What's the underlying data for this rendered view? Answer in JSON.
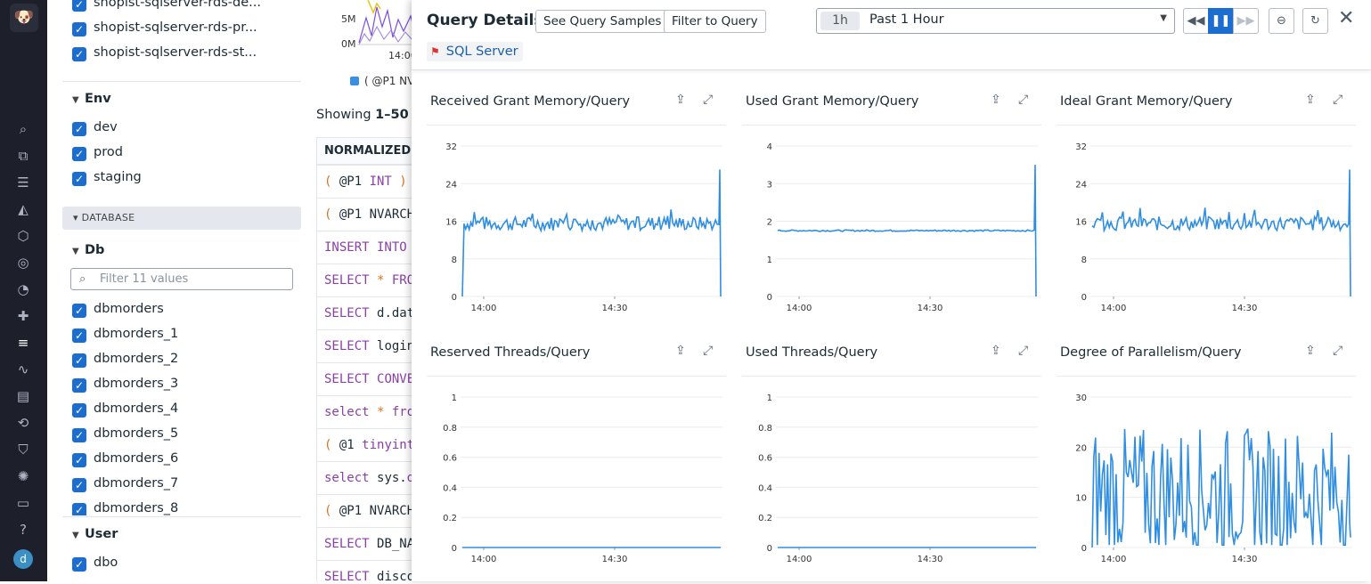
{
  "nav": {
    "logo": "🐶",
    "icons": [
      "search-icon",
      "binoculars-icon",
      "list-icon",
      "chart-icon",
      "infra-icon",
      "target-icon",
      "gauge-icon",
      "puzzle-icon",
      "logs-icon",
      "apm-icon",
      "notebook-icon",
      "rum-icon",
      "security-icon",
      "settings-icon",
      "chat-icon",
      "help-icon"
    ],
    "avatar": "d"
  },
  "facets": {
    "hosts": [
      "shopist-sqlserver-rds-de...",
      "shopist-sqlserver-rds-pr...",
      "shopist-sqlserver-rds-st..."
    ],
    "env": {
      "title": "Env",
      "items": [
        "dev",
        "prod",
        "staging"
      ]
    },
    "database_section": "DATABASE",
    "db": {
      "title": "Db",
      "filter_placeholder": "Filter 11 values",
      "items": [
        "dbmorders",
        "dbmorders_1",
        "dbmorders_2",
        "dbmorders_3",
        "dbmorders_4",
        "dbmorders_5",
        "dbmorders_6",
        "dbmorders_7",
        "dbmorders_8"
      ]
    },
    "user": {
      "title": "User",
      "items": [
        "dbo"
      ]
    }
  },
  "middle": {
    "tick_5m": "5M",
    "tick_0m": "0M",
    "tick_time": "14:00",
    "legend": "( @P1 NV",
    "showing_prefix": "Showing ",
    "showing_range": "1–50",
    "showing_suffix": " of",
    "column_header": "NORMALIZED Q",
    "queries": [
      [
        [
          "op",
          "( "
        ],
        [
          "pl",
          "@P1 "
        ],
        [
          "kw",
          "INT"
        ],
        [
          "op",
          " )"
        ]
      ],
      [
        [
          "op",
          "( "
        ],
        [
          "pl",
          "@P1 NVARCH"
        ]
      ],
      [
        [
          "kw",
          "INSERT INTO"
        ]
      ],
      [
        [
          "kw",
          "SELECT "
        ],
        [
          "op",
          "* "
        ],
        [
          "kw",
          "FRO"
        ]
      ],
      [
        [
          "kw",
          "SELECT "
        ],
        [
          "pl",
          "d.dat"
        ]
      ],
      [
        [
          "kw",
          "SELECT "
        ],
        [
          "pl",
          "login"
        ]
      ],
      [
        [
          "kw",
          "SELECT "
        ],
        [
          "kw",
          "CONVE"
        ]
      ],
      [
        [
          "kw",
          "select "
        ],
        [
          "op",
          "* "
        ],
        [
          "kw",
          "fro"
        ]
      ],
      [
        [
          "op",
          "( "
        ],
        [
          "pl",
          "@1 "
        ],
        [
          "kw",
          "tinyint"
        ]
      ],
      [
        [
          "kw",
          "select "
        ],
        [
          "pl",
          "sys."
        ],
        [
          "kw",
          "d"
        ]
      ],
      [
        [
          "op",
          "( "
        ],
        [
          "pl",
          "@P1 NVARCH"
        ]
      ],
      [
        [
          "kw",
          "SELECT "
        ],
        [
          "pl",
          "DB_NA"
        ]
      ],
      [
        [
          "kw",
          "SELECT "
        ],
        [
          "pl",
          "disco"
        ]
      ]
    ]
  },
  "panel": {
    "title": "Query Details",
    "see_samples": "See Query Samples",
    "filter_to_query": "Filter to Query",
    "tag": "SQL Server",
    "time_pill": "1h",
    "time_label": "Past 1 Hour",
    "controls": [
      "rewind-icon",
      "pause-icon",
      "fast-forward-icon",
      "zoom-out-icon",
      "refresh-icon"
    ],
    "close": "✕",
    "colors": {
      "accent": "#1c6dd0",
      "series": "#2f8ee0"
    }
  },
  "widgets": [
    {
      "title": "Received Grant Memory/Query"
    },
    {
      "title": "Used Grant Memory/Query"
    },
    {
      "title": "Ideal Grant Memory/Query"
    },
    {
      "title": "Reserved Threads/Query"
    },
    {
      "title": "Used Threads/Query"
    },
    {
      "title": "Degree of Parallelism/Query"
    }
  ],
  "chart_data": [
    {
      "type": "line",
      "title": "Received Grant Memory/Query",
      "x_ticks": [
        "14:00",
        "14:30"
      ],
      "yticks": [
        "0",
        "8",
        "16",
        "24",
        "32"
      ],
      "ylim": [
        0,
        32
      ],
      "series": [
        {
          "profile": "noisy",
          "start": 0,
          "base": 15.5,
          "amp": 1.5,
          "spikes": [],
          "end": [
            27,
            0
          ]
        }
      ]
    },
    {
      "type": "line",
      "title": "Used Grant Memory/Query",
      "x_ticks": [
        "14:00",
        "14:30"
      ],
      "yticks": [
        "0",
        "1",
        "2",
        "3",
        "4"
      ],
      "ylim": [
        0,
        4
      ],
      "series": [
        {
          "profile": "flat",
          "start": 1.75,
          "base": 1.75,
          "amp": 0.02,
          "spikes": [],
          "end": [
            3.5,
            0
          ]
        }
      ]
    },
    {
      "type": "line",
      "title": "Ideal Grant Memory/Query",
      "x_ticks": [
        "14:00",
        "14:30"
      ],
      "yticks": [
        "0",
        "8",
        "16",
        "24",
        "32"
      ],
      "ylim": [
        0,
        32
      ],
      "series": [
        {
          "profile": "noisy",
          "start": 15,
          "base": 15.5,
          "amp": 1.5,
          "spikes": [],
          "end": [
            27,
            0
          ]
        }
      ]
    },
    {
      "type": "line",
      "title": "Reserved Threads/Query",
      "x_ticks": [
        "14:00",
        "14:30"
      ],
      "yticks": [
        "0",
        "0.2",
        "0.4",
        "0.6",
        "0.8",
        "1"
      ],
      "ylim": [
        0,
        1
      ],
      "series": [
        {
          "profile": "zero",
          "start": 0,
          "base": 0,
          "amp": 0,
          "spikes": [],
          "end": [
            0,
            0
          ]
        }
      ]
    },
    {
      "type": "line",
      "title": "Used Threads/Query",
      "x_ticks": [
        "14:00",
        "14:30"
      ],
      "yticks": [
        "0",
        "0.2",
        "0.4",
        "0.6",
        "0.8",
        "1"
      ],
      "ylim": [
        0,
        1
      ],
      "series": [
        {
          "profile": "zero",
          "start": 0,
          "base": 0,
          "amp": 0,
          "spikes": [],
          "end": [
            0,
            0
          ]
        }
      ]
    },
    {
      "type": "line",
      "title": "Degree of Parallelism/Query",
      "x_ticks": [
        "14:00",
        "14:30"
      ],
      "yticks": [
        "0",
        "10",
        "20",
        "30"
      ],
      "ylim": [
        0,
        30
      ],
      "series": [
        {
          "profile": "volatile",
          "start": 0,
          "base": 11,
          "amp": 13,
          "spikes": [],
          "end": [
            5,
            2
          ]
        }
      ]
    }
  ]
}
